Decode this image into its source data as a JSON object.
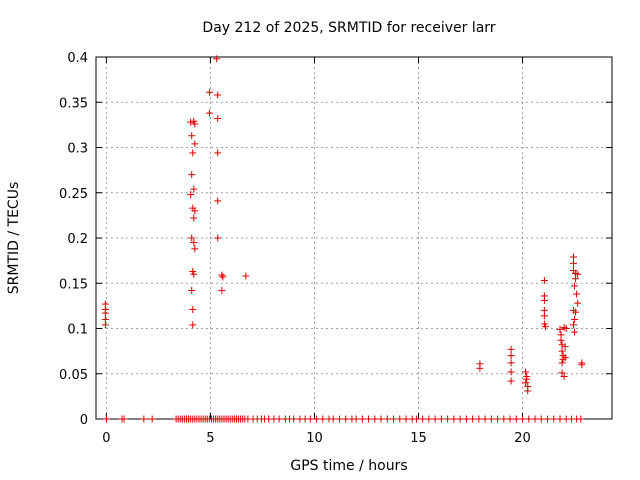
{
  "chart_data": {
    "type": "scatter",
    "title": "Day 212 of 2025, SRMTID for receiver larr",
    "xlabel": "GPS time / hours",
    "ylabel": "SRMTID / TECUs",
    "xlim": [
      -0.5,
      24.3
    ],
    "ylim": [
      0,
      0.4
    ],
    "xticks": [
      0,
      5,
      10,
      15,
      20
    ],
    "yticks": [
      0,
      0.05,
      0.1,
      0.15,
      0.2,
      0.25,
      0.3,
      0.35,
      0.4
    ],
    "ytick_labels": [
      "0",
      "0.05",
      "0.1",
      "0.15",
      "0.2",
      "0.25",
      "0.3",
      "0.35",
      "0.4"
    ],
    "grid": true,
    "marker": "+",
    "series": [
      {
        "name": "SRMTID",
        "color": "#e00000",
        "points": [
          [
            -0.05,
            0.127
          ],
          [
            -0.05,
            0.121
          ],
          [
            -0.05,
            0.117
          ],
          [
            -0.05,
            0.11
          ],
          [
            -0.05,
            0.104
          ],
          [
            4.05,
            0.328
          ],
          [
            4.1,
            0.313
          ],
          [
            4.15,
            0.294
          ],
          [
            4.2,
            0.329
          ],
          [
            4.25,
            0.326
          ],
          [
            4.25,
            0.304
          ],
          [
            4.1,
            0.27
          ],
          [
            4.05,
            0.248
          ],
          [
            4.2,
            0.254
          ],
          [
            4.15,
            0.233
          ],
          [
            4.25,
            0.23
          ],
          [
            4.2,
            0.222
          ],
          [
            4.1,
            0.2
          ],
          [
            4.2,
            0.195
          ],
          [
            4.25,
            0.188
          ],
          [
            4.15,
            0.163
          ],
          [
            4.2,
            0.16
          ],
          [
            4.1,
            0.142
          ],
          [
            4.15,
            0.121
          ],
          [
            4.15,
            0.104
          ],
          [
            4.95,
            0.361
          ],
          [
            4.95,
            0.338
          ],
          [
            5.3,
            0.398
          ],
          [
            5.35,
            0.358
          ],
          [
            5.35,
            0.332
          ],
          [
            5.35,
            0.294
          ],
          [
            5.35,
            0.241
          ],
          [
            5.35,
            0.2
          ],
          [
            5.55,
            0.159
          ],
          [
            5.6,
            0.157
          ],
          [
            5.55,
            0.142
          ],
          [
            6.7,
            0.158
          ],
          [
            17.95,
            0.061
          ],
          [
            17.95,
            0.056
          ],
          [
            19.45,
            0.077
          ],
          [
            19.45,
            0.07
          ],
          [
            19.45,
            0.062
          ],
          [
            19.45,
            0.052
          ],
          [
            19.45,
            0.042
          ],
          [
            20.15,
            0.052
          ],
          [
            20.2,
            0.047
          ],
          [
            20.2,
            0.044
          ],
          [
            20.15,
            0.04
          ],
          [
            20.25,
            0.036
          ],
          [
            20.25,
            0.031
          ],
          [
            21.05,
            0.153
          ],
          [
            21.05,
            0.136
          ],
          [
            21.05,
            0.131
          ],
          [
            21.05,
            0.12
          ],
          [
            21.05,
            0.114
          ],
          [
            21.05,
            0.105
          ],
          [
            21.1,
            0.102
          ],
          [
            21.8,
            0.099
          ],
          [
            21.85,
            0.093
          ],
          [
            21.85,
            0.087
          ],
          [
            21.9,
            0.082
          ],
          [
            21.9,
            0.075
          ],
          [
            21.95,
            0.07
          ],
          [
            21.95,
            0.066
          ],
          [
            21.9,
            0.062
          ],
          [
            21.9,
            0.051
          ],
          [
            22.0,
            0.047
          ],
          [
            22.0,
            0.101
          ],
          [
            22.05,
            0.08
          ],
          [
            22.1,
            0.1
          ],
          [
            22.05,
            0.068
          ],
          [
            22.45,
            0.179
          ],
          [
            22.45,
            0.172
          ],
          [
            22.45,
            0.164
          ],
          [
            22.55,
            0.161
          ],
          [
            22.55,
            0.155
          ],
          [
            22.5,
            0.147
          ],
          [
            22.6,
            0.138
          ],
          [
            22.45,
            0.12
          ],
          [
            22.55,
            0.118
          ],
          [
            22.5,
            0.11
          ],
          [
            22.45,
            0.104
          ],
          [
            22.5,
            0.096
          ],
          [
            22.65,
            0.128
          ],
          [
            22.65,
            0.16
          ],
          [
            22.85,
            0.062
          ],
          [
            22.85,
            0.06
          ],
          [
            0.0,
            0
          ],
          [
            0.75,
            0
          ],
          [
            0.85,
            0
          ],
          [
            1.8,
            0
          ],
          [
            2.2,
            0
          ],
          [
            3.35,
            0
          ],
          [
            3.45,
            0
          ],
          [
            3.55,
            0
          ],
          [
            3.65,
            0
          ],
          [
            3.75,
            0
          ],
          [
            3.85,
            0
          ],
          [
            3.95,
            0
          ],
          [
            4.05,
            0
          ],
          [
            4.15,
            0
          ],
          [
            4.25,
            0
          ],
          [
            4.35,
            0
          ],
          [
            4.45,
            0
          ],
          [
            4.55,
            0
          ],
          [
            4.65,
            0
          ],
          [
            4.75,
            0
          ],
          [
            4.85,
            0
          ],
          [
            4.95,
            0
          ],
          [
            5.05,
            0
          ],
          [
            5.15,
            0
          ],
          [
            5.25,
            0
          ],
          [
            5.35,
            0
          ],
          [
            5.45,
            0
          ],
          [
            5.55,
            0
          ],
          [
            5.65,
            0
          ],
          [
            5.75,
            0
          ],
          [
            5.85,
            0
          ],
          [
            5.95,
            0
          ],
          [
            6.05,
            0
          ],
          [
            6.15,
            0
          ],
          [
            6.25,
            0
          ],
          [
            6.35,
            0
          ],
          [
            6.45,
            0
          ],
          [
            6.55,
            0
          ],
          [
            6.65,
            0
          ],
          [
            6.8,
            0
          ],
          [
            7.05,
            0
          ],
          [
            7.25,
            0
          ],
          [
            7.45,
            0
          ],
          [
            7.6,
            0
          ],
          [
            7.8,
            0
          ],
          [
            8.05,
            0
          ],
          [
            8.3,
            0
          ],
          [
            8.6,
            0
          ],
          [
            8.8,
            0
          ],
          [
            9.0,
            0
          ],
          [
            9.3,
            0
          ],
          [
            9.55,
            0
          ],
          [
            9.8,
            0
          ],
          [
            10.1,
            0
          ],
          [
            10.4,
            0
          ],
          [
            10.7,
            0
          ],
          [
            10.9,
            0
          ],
          [
            11.2,
            0
          ],
          [
            11.5,
            0
          ],
          [
            11.8,
            0
          ],
          [
            12.0,
            0
          ],
          [
            12.3,
            0
          ],
          [
            12.6,
            0
          ],
          [
            12.9,
            0
          ],
          [
            13.2,
            0
          ],
          [
            13.5,
            0
          ],
          [
            13.8,
            0
          ],
          [
            14.1,
            0
          ],
          [
            14.4,
            0
          ],
          [
            14.7,
            0
          ],
          [
            14.9,
            0
          ],
          [
            15.2,
            0
          ],
          [
            15.5,
            0
          ],
          [
            15.8,
            0
          ],
          [
            16.1,
            0
          ],
          [
            16.4,
            0
          ],
          [
            16.7,
            0
          ],
          [
            17.0,
            0
          ],
          [
            17.3,
            0
          ],
          [
            17.6,
            0
          ],
          [
            17.9,
            0
          ],
          [
            18.2,
            0
          ],
          [
            18.5,
            0
          ],
          [
            18.8,
            0
          ],
          [
            19.1,
            0
          ],
          [
            19.4,
            0
          ],
          [
            19.7,
            0
          ],
          [
            20.0,
            0
          ],
          [
            20.3,
            0
          ],
          [
            20.6,
            0
          ],
          [
            20.9,
            0
          ],
          [
            21.2,
            0
          ],
          [
            21.5,
            0
          ],
          [
            21.8,
            0
          ],
          [
            22.1,
            0
          ],
          [
            22.35,
            0
          ],
          [
            22.6,
            0
          ],
          [
            22.8,
            0
          ]
        ]
      }
    ]
  }
}
